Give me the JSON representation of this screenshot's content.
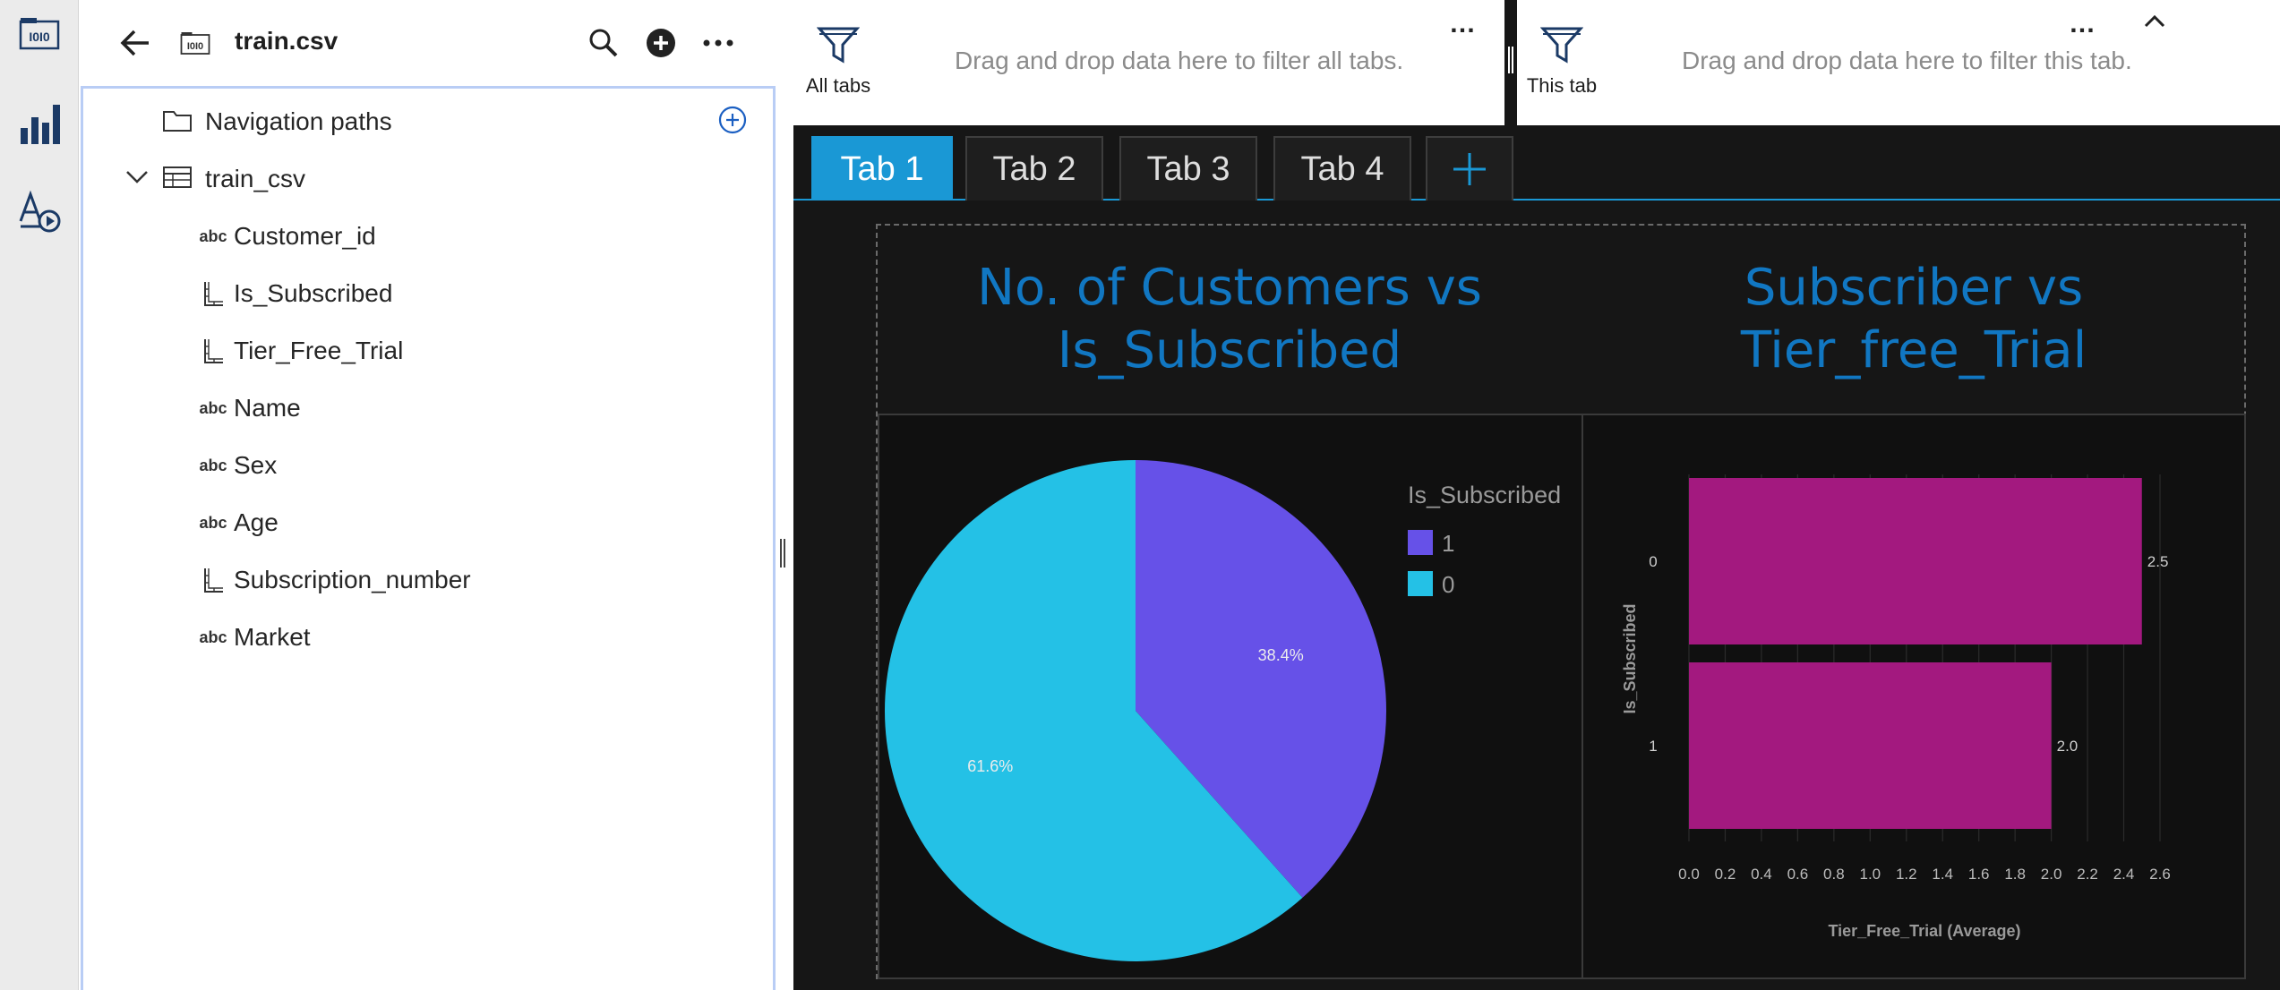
{
  "app": {
    "rail": {
      "items": [
        "data-sources-icon",
        "visualizations-icon",
        "assets-icon"
      ]
    }
  },
  "panel": {
    "title": "train.csv",
    "tree": {
      "nav_paths": "Navigation paths",
      "table_name": "train_csv",
      "columns": [
        {
          "name": "Customer_id",
          "type": "abc"
        },
        {
          "name": "Is_Subscribed",
          "type": "measure"
        },
        {
          "name": "Tier_Free_Trial",
          "type": "measure"
        },
        {
          "name": "Name",
          "type": "abc"
        },
        {
          "name": "Sex",
          "type": "abc"
        },
        {
          "name": "Age",
          "type": "abc"
        },
        {
          "name": "Subscription_number",
          "type": "measure"
        },
        {
          "name": "Market",
          "type": "abc"
        }
      ]
    }
  },
  "filters": {
    "all_tabs": {
      "caption": "All tabs",
      "hint": "Drag and drop data here to filter all tabs."
    },
    "this_tab": {
      "caption": "This tab",
      "hint": "Drag and drop data here to filter this tab."
    },
    "more": "…"
  },
  "tabs": [
    {
      "label": "Tab 1",
      "active": true
    },
    {
      "label": "Tab 2",
      "active": false
    },
    {
      "label": "Tab 3",
      "active": false
    },
    {
      "label": "Tab 4",
      "active": false
    }
  ],
  "titles": {
    "left": [
      "No. of Customers vs",
      "Is_Subscribed"
    ],
    "right": [
      "Subscriber vs",
      "Tier_free_Trial"
    ]
  },
  "colors": {
    "accent": "#1a98d5",
    "title": "#1177c2",
    "pie_1": "#6651e8",
    "pie_0": "#24c1e6",
    "bar": "#a3197f"
  },
  "chart_data": [
    {
      "type": "pie",
      "legend_title": "Is_Subscribed",
      "legend_position": "right",
      "slices": [
        {
          "label": "1",
          "value": 38.4,
          "display": "38.4%",
          "color": "#6651e8"
        },
        {
          "label": "0",
          "value": 61.6,
          "display": "61.6%",
          "color": "#24c1e6"
        }
      ]
    },
    {
      "type": "bar",
      "orientation": "horizontal",
      "categories": [
        "0",
        "1"
      ],
      "values": [
        2.5,
        2.0
      ],
      "value_labels": [
        "2.5",
        "2.0"
      ],
      "xlabel": "Tier_Free_Trial (Average)",
      "ylabel": "Is_Subscribed",
      "xlim": [
        0,
        2.6
      ],
      "x_ticks": [
        "0.0",
        "0.2",
        "0.4",
        "0.6",
        "0.8",
        "1.0",
        "1.2",
        "1.4",
        "1.6",
        "1.8",
        "2.0",
        "2.2",
        "2.4",
        "2.6"
      ],
      "grid": true,
      "color": "#a3197f"
    }
  ]
}
